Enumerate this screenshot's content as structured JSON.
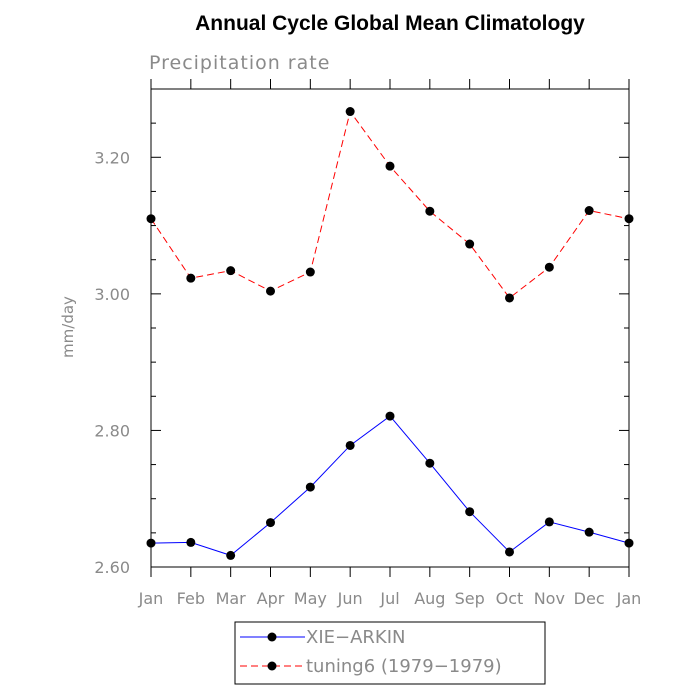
{
  "chart_data": {
    "type": "line",
    "title": "Annual Cycle Global Mean Climatology",
    "subtitle": "Precipitation rate",
    "xlabel": "",
    "ylabel": "mm/day",
    "categories": [
      "Jan",
      "Feb",
      "Mar",
      "Apr",
      "May",
      "Jun",
      "Jul",
      "Aug",
      "Sep",
      "Oct",
      "Nov",
      "Dec",
      "Jan"
    ],
    "ylim": [
      2.6,
      3.3
    ],
    "yticks": [
      2.6,
      2.8,
      3.0,
      3.2
    ],
    "ytick_labels": [
      "2.60",
      "2.80",
      "3.00",
      "3.20"
    ],
    "grid": false,
    "legend_position": "bottom-center",
    "series": [
      {
        "name": "XIE−ARKIN",
        "color": "#0000ff",
        "line_style": "solid",
        "marker": "filled-circle",
        "values": [
          2.635,
          2.636,
          2.617,
          2.665,
          2.717,
          2.778,
          2.821,
          2.752,
          2.681,
          2.622,
          2.666,
          2.651,
          2.635
        ]
      },
      {
        "name": "tuning6 (1979−1979)",
        "color": "#ff0000",
        "line_style": "dashed",
        "marker": "filled-circle",
        "values": [
          3.11,
          3.023,
          3.034,
          3.004,
          3.032,
          3.267,
          3.187,
          3.121,
          3.073,
          2.994,
          3.039,
          3.122,
          3.11
        ]
      }
    ]
  }
}
